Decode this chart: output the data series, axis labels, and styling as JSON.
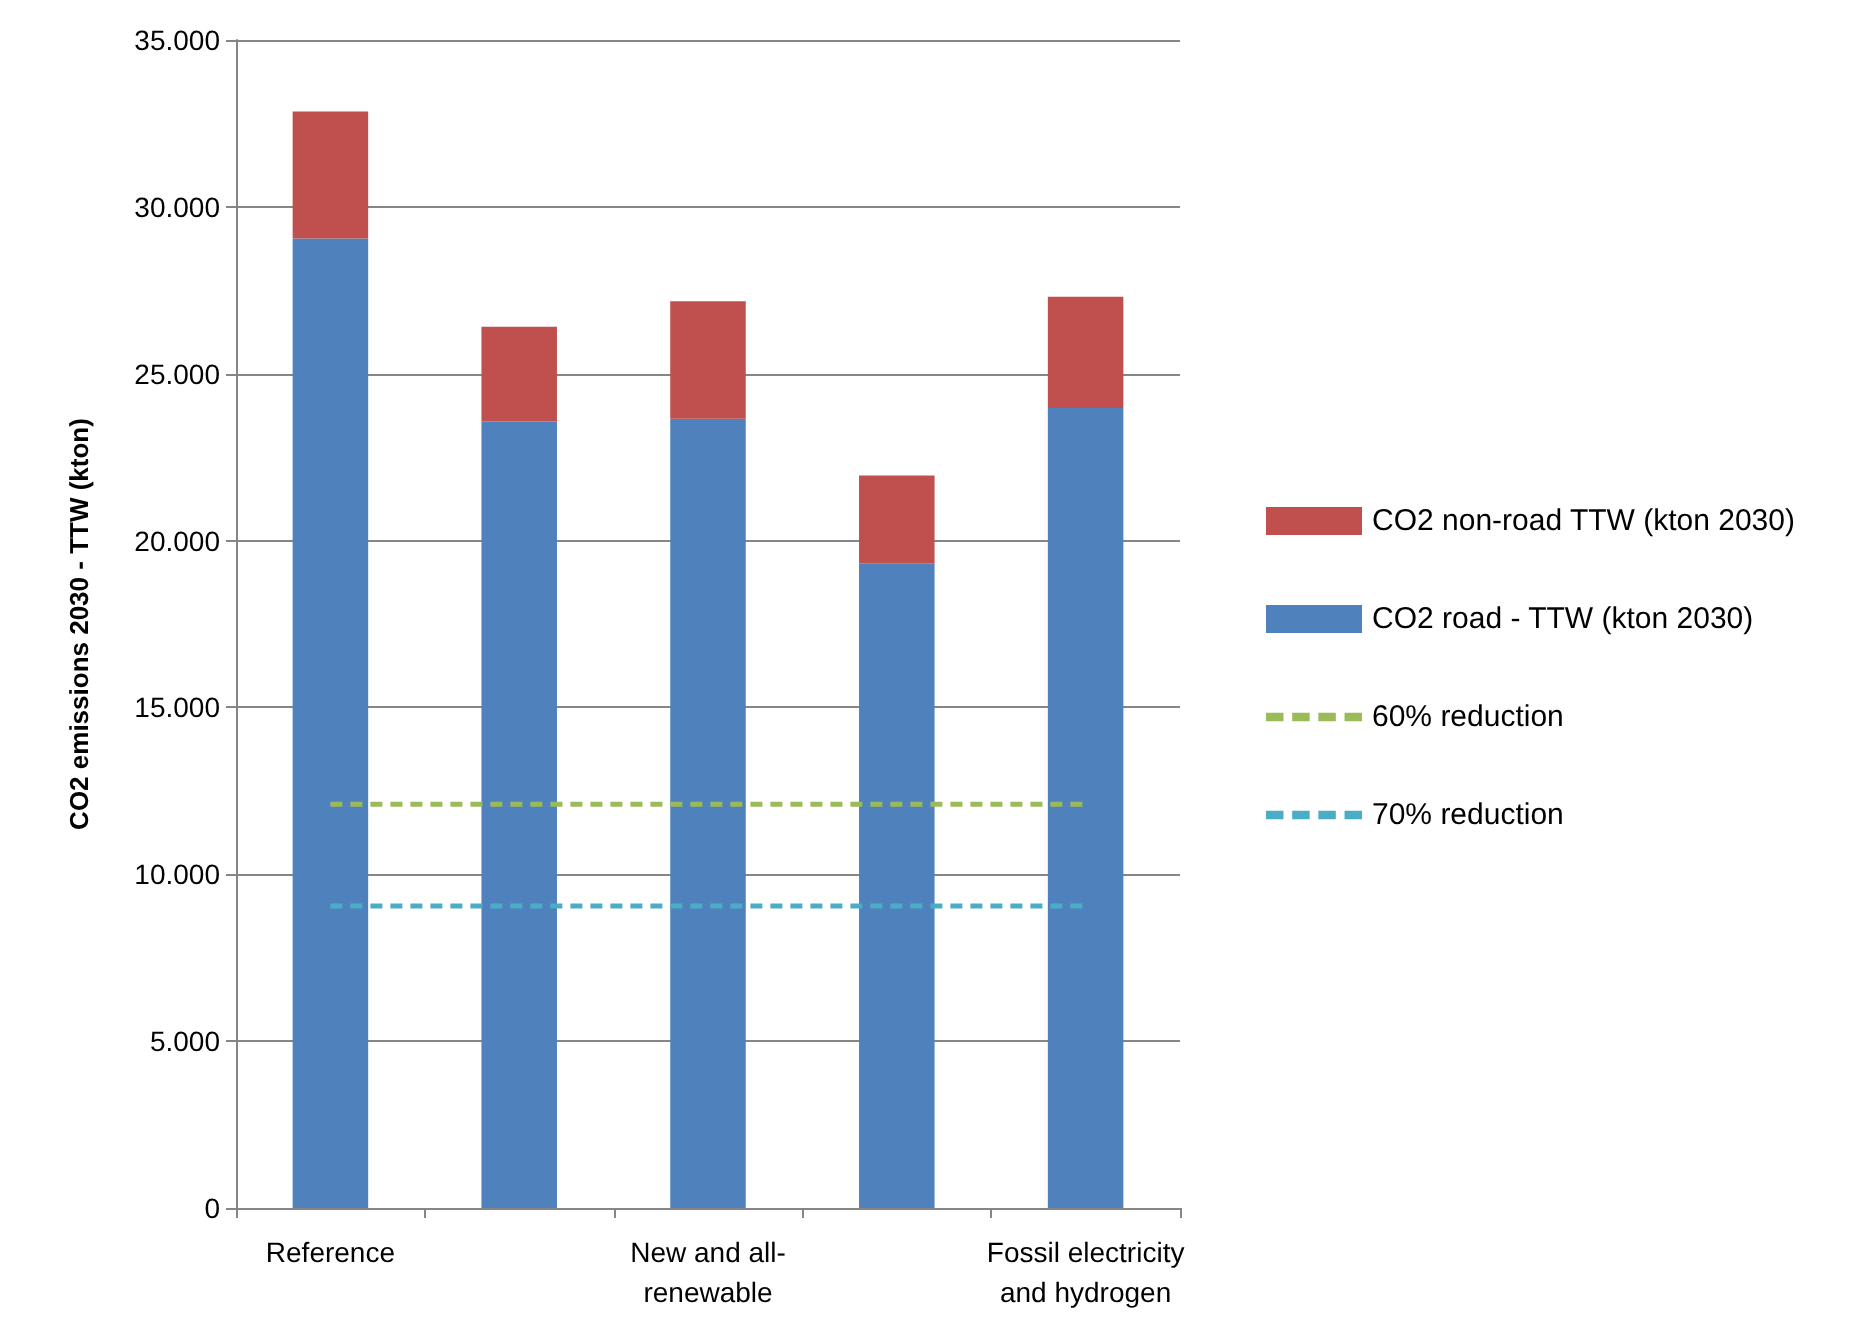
{
  "chart_data": {
    "type": "bar",
    "stacked": true,
    "ylabel": "CO2 emissions 2030 - TTW (kton)",
    "categories": [
      "Reference",
      null,
      "New and all-renewable",
      null,
      "Fossil electricity and hydrogen"
    ],
    "series": [
      {
        "name": "CO2 road - TTW (kton 2030)",
        "color": "#4f81bd",
        "values": [
          29050,
          23570,
          23650,
          19320,
          23970
        ]
      },
      {
        "name": "CO2 non-road TTW (kton 2030)",
        "color": "#c0504d",
        "values": [
          3810,
          2840,
          3520,
          2630,
          3340
        ]
      },
      {
        "name": "60% reduction",
        "type": "line",
        "color": "#9bbb59",
        "line_style": "dashed",
        "marker": "none",
        "values": [
          12100,
          12100,
          12100,
          12100,
          12100
        ]
      },
      {
        "name": "70% reduction",
        "type": "line",
        "color": "#4bacc6",
        "line_style": "dashed",
        "marker": "none",
        "values": [
          9050,
          9050,
          9050,
          9050,
          9050
        ]
      }
    ],
    "ylim": [
      0,
      35000
    ],
    "yticks": [
      0,
      {
        "value": 5000,
        "label": "5.000"
      },
      {
        "value": 10000,
        "label": "10.000"
      },
      {
        "value": 15000,
        "label": "15.000"
      },
      {
        "value": 20000,
        "label": "20.000"
      },
      {
        "value": 25000,
        "label": "25.000"
      },
      {
        "value": 30000,
        "label": "30.000"
      },
      {
        "value": 35000,
        "label": "35.000"
      }
    ],
    "grid": "y",
    "legend": "right"
  }
}
